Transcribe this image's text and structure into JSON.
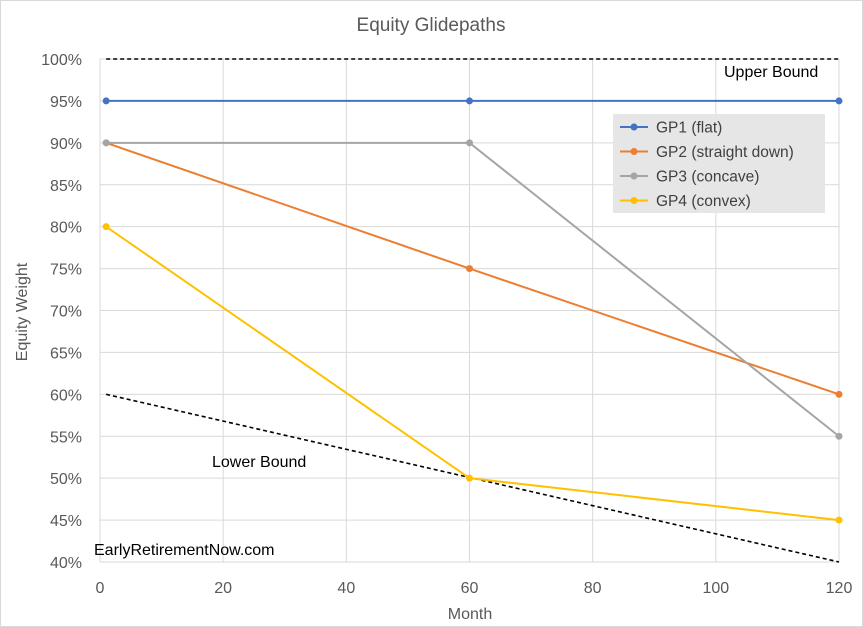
{
  "chart_data": {
    "type": "line",
    "title": "Equity Glidepaths",
    "xlabel": "Month",
    "ylabel": "Equity Weight",
    "xlim": [
      0,
      120
    ],
    "ylim": [
      40,
      100
    ],
    "xticks": [
      0,
      20,
      40,
      60,
      80,
      100,
      120
    ],
    "yticks": [
      40,
      45,
      50,
      55,
      60,
      65,
      70,
      75,
      80,
      85,
      90,
      95,
      100
    ],
    "ytick_format": "percent",
    "grid": true,
    "legend_position": "top-right",
    "series": [
      {
        "name": "GP1 (flat)",
        "color": "#4472C4",
        "markers": true,
        "x": [
          1,
          60,
          120
        ],
        "y": [
          95,
          95,
          95
        ]
      },
      {
        "name": "GP2 (straight down)",
        "color": "#ED7D31",
        "markers": true,
        "x": [
          1,
          60,
          120
        ],
        "y": [
          90,
          75,
          60
        ]
      },
      {
        "name": "GP3 (concave)",
        "color": "#A5A5A5",
        "markers": true,
        "x": [
          1,
          60,
          120
        ],
        "y": [
          90,
          90,
          55
        ]
      },
      {
        "name": "GP4 (convex)",
        "color": "#FFC000",
        "markers": true,
        "x": [
          1,
          60,
          120
        ],
        "y": [
          80,
          50,
          45
        ]
      }
    ],
    "bounds": [
      {
        "label": "Upper Bound",
        "color": "#000000",
        "dashed": true,
        "x": [
          1,
          120
        ],
        "y": [
          100,
          100
        ]
      },
      {
        "label": "Lower Bound",
        "color": "#000000",
        "dashed": true,
        "x": [
          1,
          120
        ],
        "y": [
          60,
          40
        ]
      }
    ],
    "annotations": [
      {
        "text": "EarlyRetirementNow.com"
      }
    ]
  }
}
